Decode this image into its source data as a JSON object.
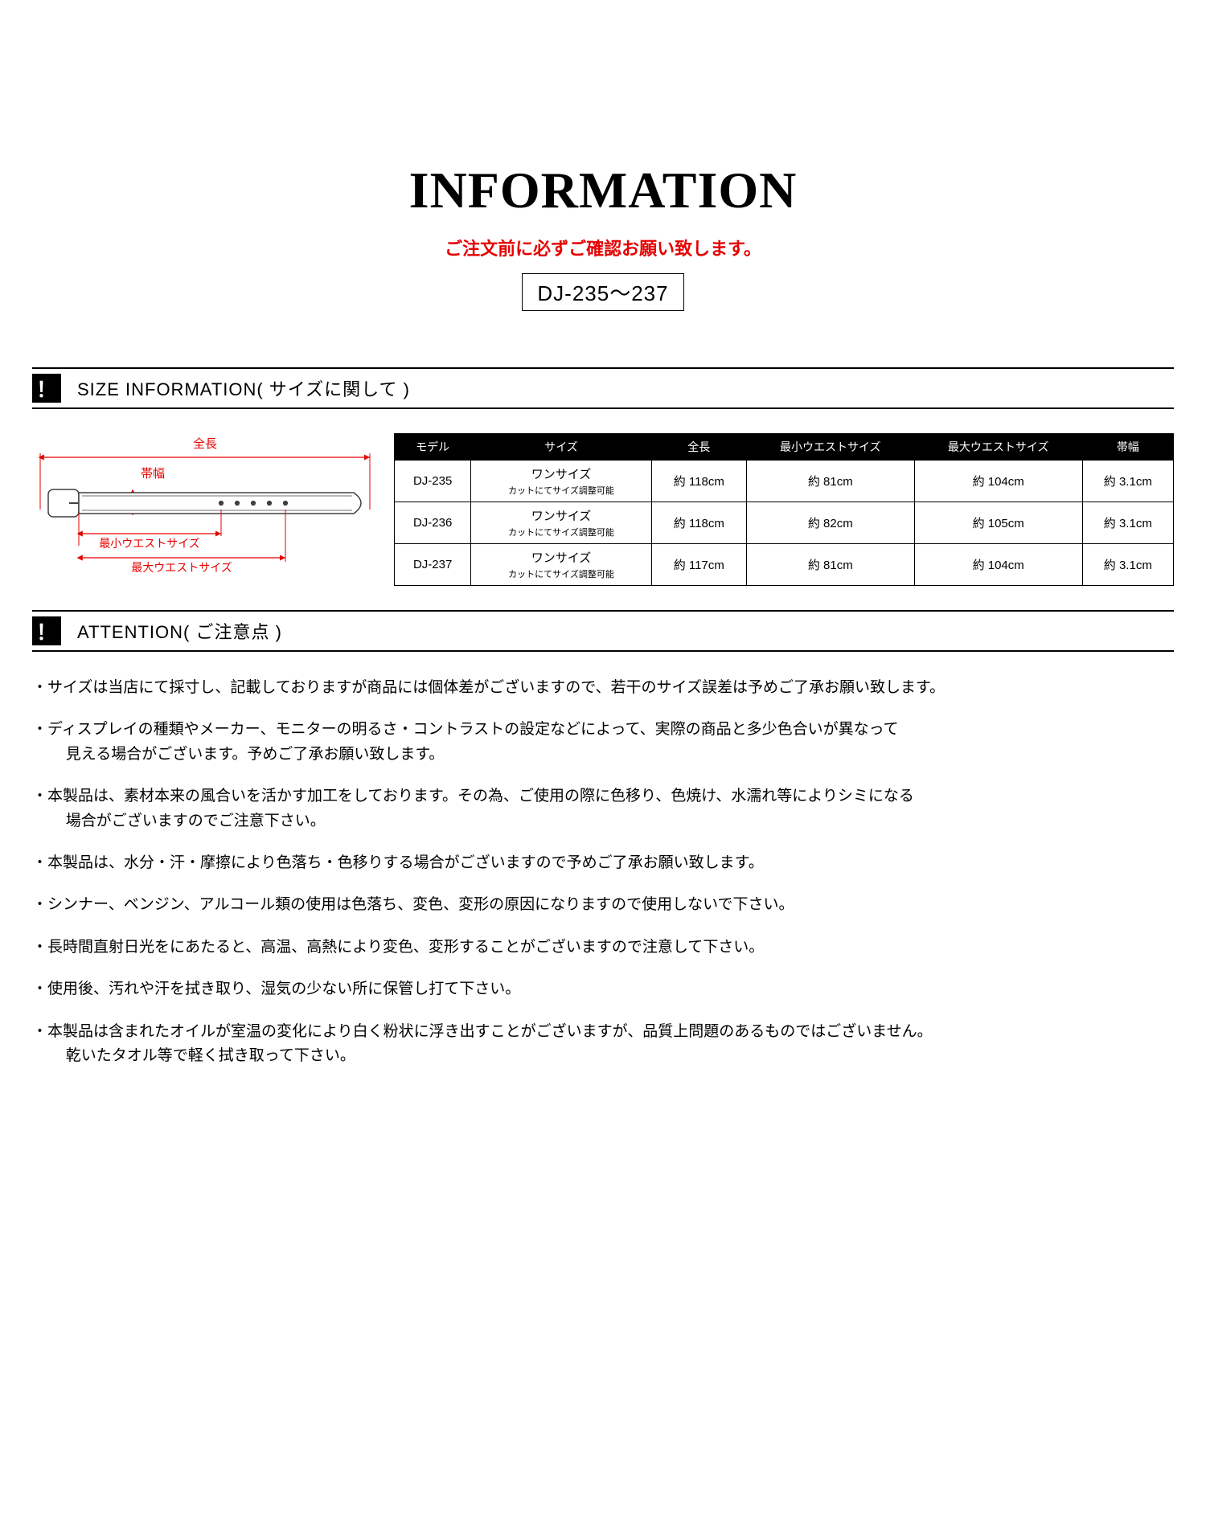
{
  "header": {
    "title": "INFORMATION",
    "subtitle": "ご注文前に必ずご確認お願い致します。",
    "model_range": "DJ-235〜237"
  },
  "sections": {
    "size": {
      "mark": "！",
      "label": "SIZE INFORMATION( サイズに関して )"
    },
    "attention": {
      "mark": "！",
      "label": "ATTENTION( ご注意点 )"
    }
  },
  "diagram": {
    "labels": {
      "full_length": "全長",
      "width": "帯幅",
      "min_waist": "最小ウエストサイズ",
      "max_waist": "最大ウエストサイズ"
    },
    "colors": {
      "line": "#e60000",
      "belt_stroke": "#404040",
      "belt_fill": "#ffffff"
    }
  },
  "size_table": {
    "columns": [
      "モデル",
      "サイズ",
      "全長",
      "最小ウエストサイズ",
      "最大ウエストサイズ",
      "帯幅"
    ],
    "rows": [
      {
        "model": "DJ-235",
        "size_main": "ワンサイズ",
        "size_sub": "カットにてサイズ調整可能",
        "full": "約 118cm",
        "min": "約 81cm",
        "max": "約 104cm",
        "width": "約 3.1cm"
      },
      {
        "model": "DJ-236",
        "size_main": "ワンサイズ",
        "size_sub": "カットにてサイズ調整可能",
        "full": "約 118cm",
        "min": "約 82cm",
        "max": "約 105cm",
        "width": "約 3.1cm"
      },
      {
        "model": "DJ-237",
        "size_main": "ワンサイズ",
        "size_sub": "カットにてサイズ調整可能",
        "full": "約 117cm",
        "min": "約 81cm",
        "max": "約 104cm",
        "width": "約 3.1cm"
      }
    ]
  },
  "attention": {
    "items": [
      "・サイズは当店にて採寸し、記載しておりますが商品には個体差がございますので、若干のサイズ誤差は予めご了承お願い致します。",
      "・ディスプレイの種類やメーカー、モニターの明るさ・コントラストの設定などによって、実際の商品と多少色合いが異なって\n　見える場合がございます。予めご了承お願い致します。",
      "・本製品は、素材本来の風合いを活かす加工をしております。その為、ご使用の際に色移り、色焼け、水濡れ等によりシミになる\n　場合がございますのでご注意下さい。",
      "・本製品は、水分・汗・摩擦により色落ち・色移りする場合がございますので予めご了承お願い致します。",
      "・シンナー、ベンジン、アルコール類の使用は色落ち、変色、変形の原因になりますので使用しないで下さい。",
      "・長時間直射日光をにあたると、高温、高熱により変色、変形することがございますので注意して下さい。",
      "・使用後、汚れや汗を拭き取り、湿気の少ない所に保管し打て下さい。",
      "・本製品は含まれたオイルが室温の変化により白く粉状に浮き出すことがございますが、品質上問題のあるものではございません。\n　乾いたタオル等で軽く拭き取って下さい。"
    ]
  }
}
